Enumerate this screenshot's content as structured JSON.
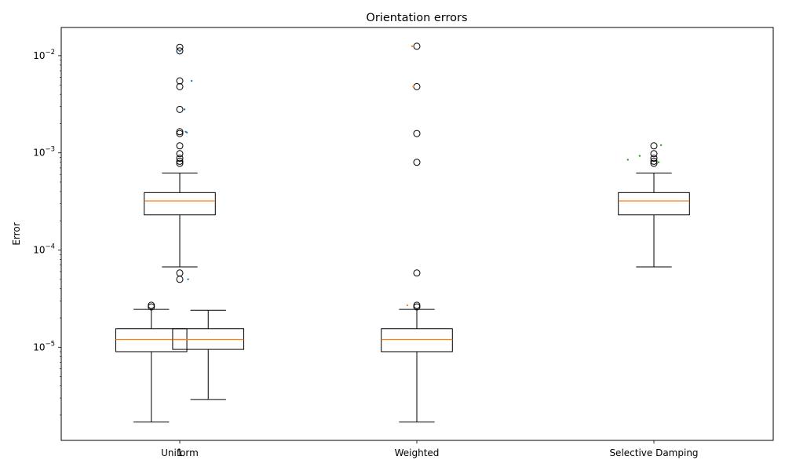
{
  "chart_data": {
    "type": "box",
    "title": "Orientation errors",
    "xlabel": "",
    "ylabel": "Error",
    "yscale": "log",
    "ylim": [
      1.1e-06,
      0.0195
    ],
    "categories": [
      "Uniform",
      "Weighted",
      "Selective Damping"
    ],
    "y_ticks": [
      {
        "value": 1e-05,
        "label": "10^-5",
        "base": "10",
        "exp": "−5"
      },
      {
        "value": 0.0001,
        "label": "10^-4",
        "base": "10",
        "exp": "−4"
      },
      {
        "value": 0.001,
        "label": "10^-3",
        "base": "10",
        "exp": "−3"
      },
      {
        "value": 0.01,
        "label": "10^-2",
        "base": "10",
        "exp": "−2"
      }
    ],
    "overlay_label": "1",
    "colors": {
      "box": "#000000",
      "median": "#ff7f0e",
      "series": [
        "#1f77b4",
        "#ff7f0e",
        "#2ca02c"
      ]
    },
    "boxes": [
      {
        "group": 0,
        "offset": -0.12,
        "half_width": 0.25,
        "whislo": 1.7e-06,
        "q1": 9e-06,
        "median": 1.2e-05,
        "q3": 1.55e-05,
        "whishi": 2.45e-05,
        "fliers": [
          2.7e-05,
          2.6e-05
        ]
      },
      {
        "group": 0,
        "offset": 0.0,
        "half_width": 0.25,
        "whislo": 6.7e-05,
        "q1": 0.00023,
        "median": 0.00032,
        "q3": 0.00039,
        "whishi": 0.00062,
        "fliers": [
          0.0122,
          0.0112,
          0.0055,
          0.0048,
          0.0028,
          0.00165,
          0.00158,
          0.00118,
          0.00098,
          0.00088,
          0.00082,
          0.00078,
          5.8e-05,
          5e-05
        ]
      },
      {
        "group": 0,
        "offset": 0.12,
        "half_width": 0.25,
        "whislo": 2.9e-06,
        "q1": 9.5e-06,
        "median": 1.2e-05,
        "q3": 1.55e-05,
        "whishi": 2.4e-05,
        "fliers": []
      },
      {
        "group": 1,
        "offset": 0.0,
        "half_width": 0.25,
        "whislo": 1.7e-06,
        "q1": 9e-06,
        "median": 1.2e-05,
        "q3": 1.55e-05,
        "whishi": 2.45e-05,
        "fliers": [
          0.0125,
          0.0048,
          0.00158,
          0.0008,
          5.8e-05,
          2.7e-05,
          2.6e-05
        ]
      },
      {
        "group": 2,
        "offset": 0.0,
        "half_width": 0.25,
        "whislo": 6.7e-05,
        "q1": 0.00023,
        "median": 0.00032,
        "q3": 0.00039,
        "whishi": 0.00062,
        "fliers": [
          0.00118,
          0.00098,
          0.00088,
          0.00082,
          0.00078
        ]
      }
    ],
    "scatter": [
      {
        "series": 0,
        "points": [
          [
            0.05,
            0.0055
          ],
          [
            0.02,
            0.0028
          ],
          [
            0.025,
            0.00165
          ],
          [
            0.03,
            0.00162
          ],
          [
            0.035,
            5e-05
          ],
          [
            0.0,
            0.0112
          ]
        ]
      },
      {
        "series": 1,
        "points": [
          [
            -0.02,
            0.0125
          ],
          [
            -0.015,
            0.0048
          ],
          [
            -0.04,
            2.7e-05
          ]
        ]
      },
      {
        "series": 2,
        "points": [
          [
            -0.11,
            0.00085
          ],
          [
            -0.06,
            0.00093
          ],
          [
            0.03,
            0.0012
          ],
          [
            0.02,
            0.0008
          ]
        ]
      }
    ]
  }
}
